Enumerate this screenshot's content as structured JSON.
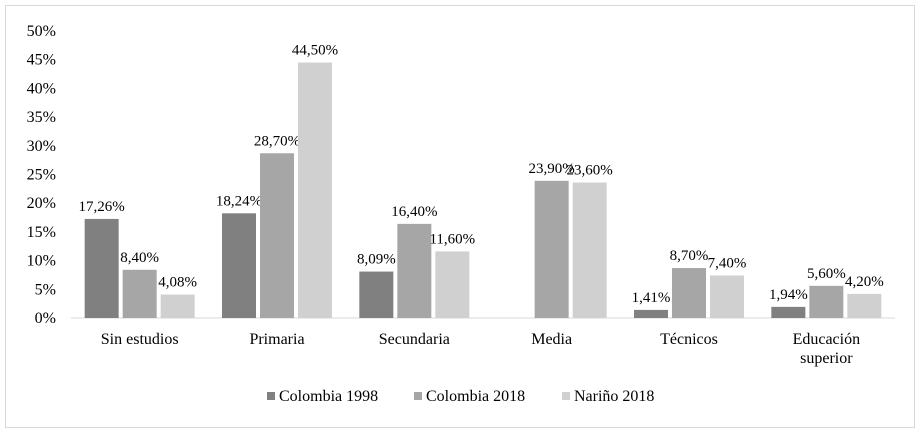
{
  "chart_data": {
    "type": "bar",
    "title": "",
    "xlabel": "",
    "ylabel": "",
    "ylim": [
      0,
      50
    ],
    "yticks": [
      "0%",
      "5%",
      "10%",
      "15%",
      "20%",
      "25%",
      "30%",
      "35%",
      "40%",
      "45%",
      "50%"
    ],
    "categories": [
      [
        "Sin estudios"
      ],
      [
        "Primaria"
      ],
      [
        "Secundaria"
      ],
      [
        "Media"
      ],
      [
        "Técnicos"
      ],
      [
        "Educación",
        "superior"
      ]
    ],
    "series": [
      {
        "name": "Colombia 1998",
        "color": "#808080",
        "values": [
          17.26,
          18.24,
          8.09,
          null,
          1.41,
          1.94
        ],
        "labels": [
          "17,26%",
          "18,24%",
          "8,09%",
          "",
          "1,41%",
          "1,94%"
        ]
      },
      {
        "name": "Colombia 2018",
        "color": "#a6a6a6",
        "values": [
          8.4,
          28.7,
          16.4,
          23.9,
          8.7,
          5.6
        ],
        "labels": [
          "8,40%",
          "28,70%",
          "16,40%",
          "23,90%",
          "8,70%",
          "5,60%"
        ]
      },
      {
        "name": "Nariño 2018",
        "color": "#d0d0d0",
        "values": [
          4.08,
          44.5,
          11.6,
          23.6,
          7.4,
          4.2
        ],
        "labels": [
          "4,08%",
          "44,50%",
          "11,60%",
          "23,60%",
          "7,40%",
          "4,20%"
        ]
      }
    ],
    "legend_position": "bottom"
  }
}
